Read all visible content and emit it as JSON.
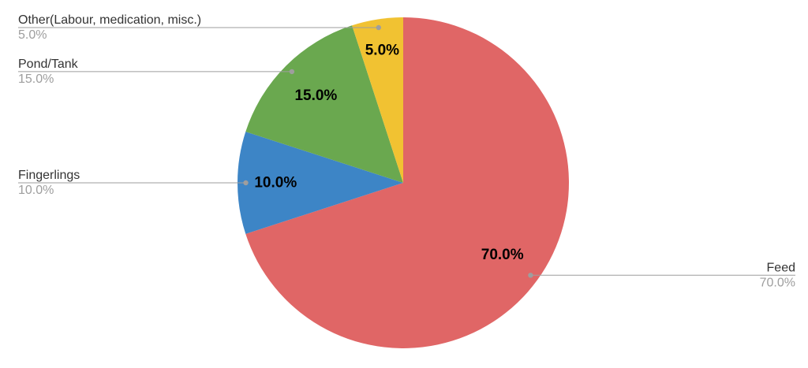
{
  "chart_data": {
    "type": "pie",
    "title": "",
    "unit": "percent",
    "direction": "clockwise",
    "start_angle_deg": 0,
    "legend": "none",
    "labels_layout": "outside-callouts-with-leader-lines",
    "slices": [
      {
        "label": "Feed",
        "value": 70.0,
        "value_label": "70.0%",
        "callout_percent": "70.0%",
        "color": "#E06666",
        "callout_side": "right"
      },
      {
        "label": "Fingerlings",
        "value": 10.0,
        "value_label": "10.0%",
        "callout_percent": "10.0%",
        "color": "#3D85C6",
        "callout_side": "left"
      },
      {
        "label": "Pond/Tank",
        "value": 15.0,
        "value_label": "15.0%",
        "callout_percent": "15.0%",
        "color": "#6AA84F",
        "callout_side": "left"
      },
      {
        "label": "Other(Labour, medication, misc.)",
        "value": 5.0,
        "value_label": "5.0%",
        "callout_percent": "5.0%",
        "color": "#F1C232",
        "callout_side": "left"
      }
    ],
    "style": {
      "background": "#FFFFFF",
      "slice_value_label_color": "#000000",
      "callout_label_color": "#333333",
      "callout_percent_color": "#9E9E9E",
      "leader_line_color": "#9E9E9E",
      "leader_dot_color": "#9E9E9E"
    }
  }
}
